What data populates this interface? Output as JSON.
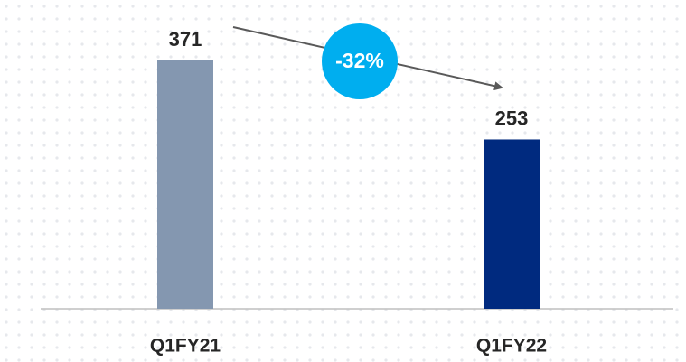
{
  "chart_data": {
    "type": "bar",
    "categories": [
      "Q1FY21",
      "Q1FY22"
    ],
    "values": [
      371,
      253
    ],
    "colors": [
      "#8497b0",
      "#002a7f"
    ],
    "annotation": "-32%",
    "annotation_color": "#00aeef"
  }
}
